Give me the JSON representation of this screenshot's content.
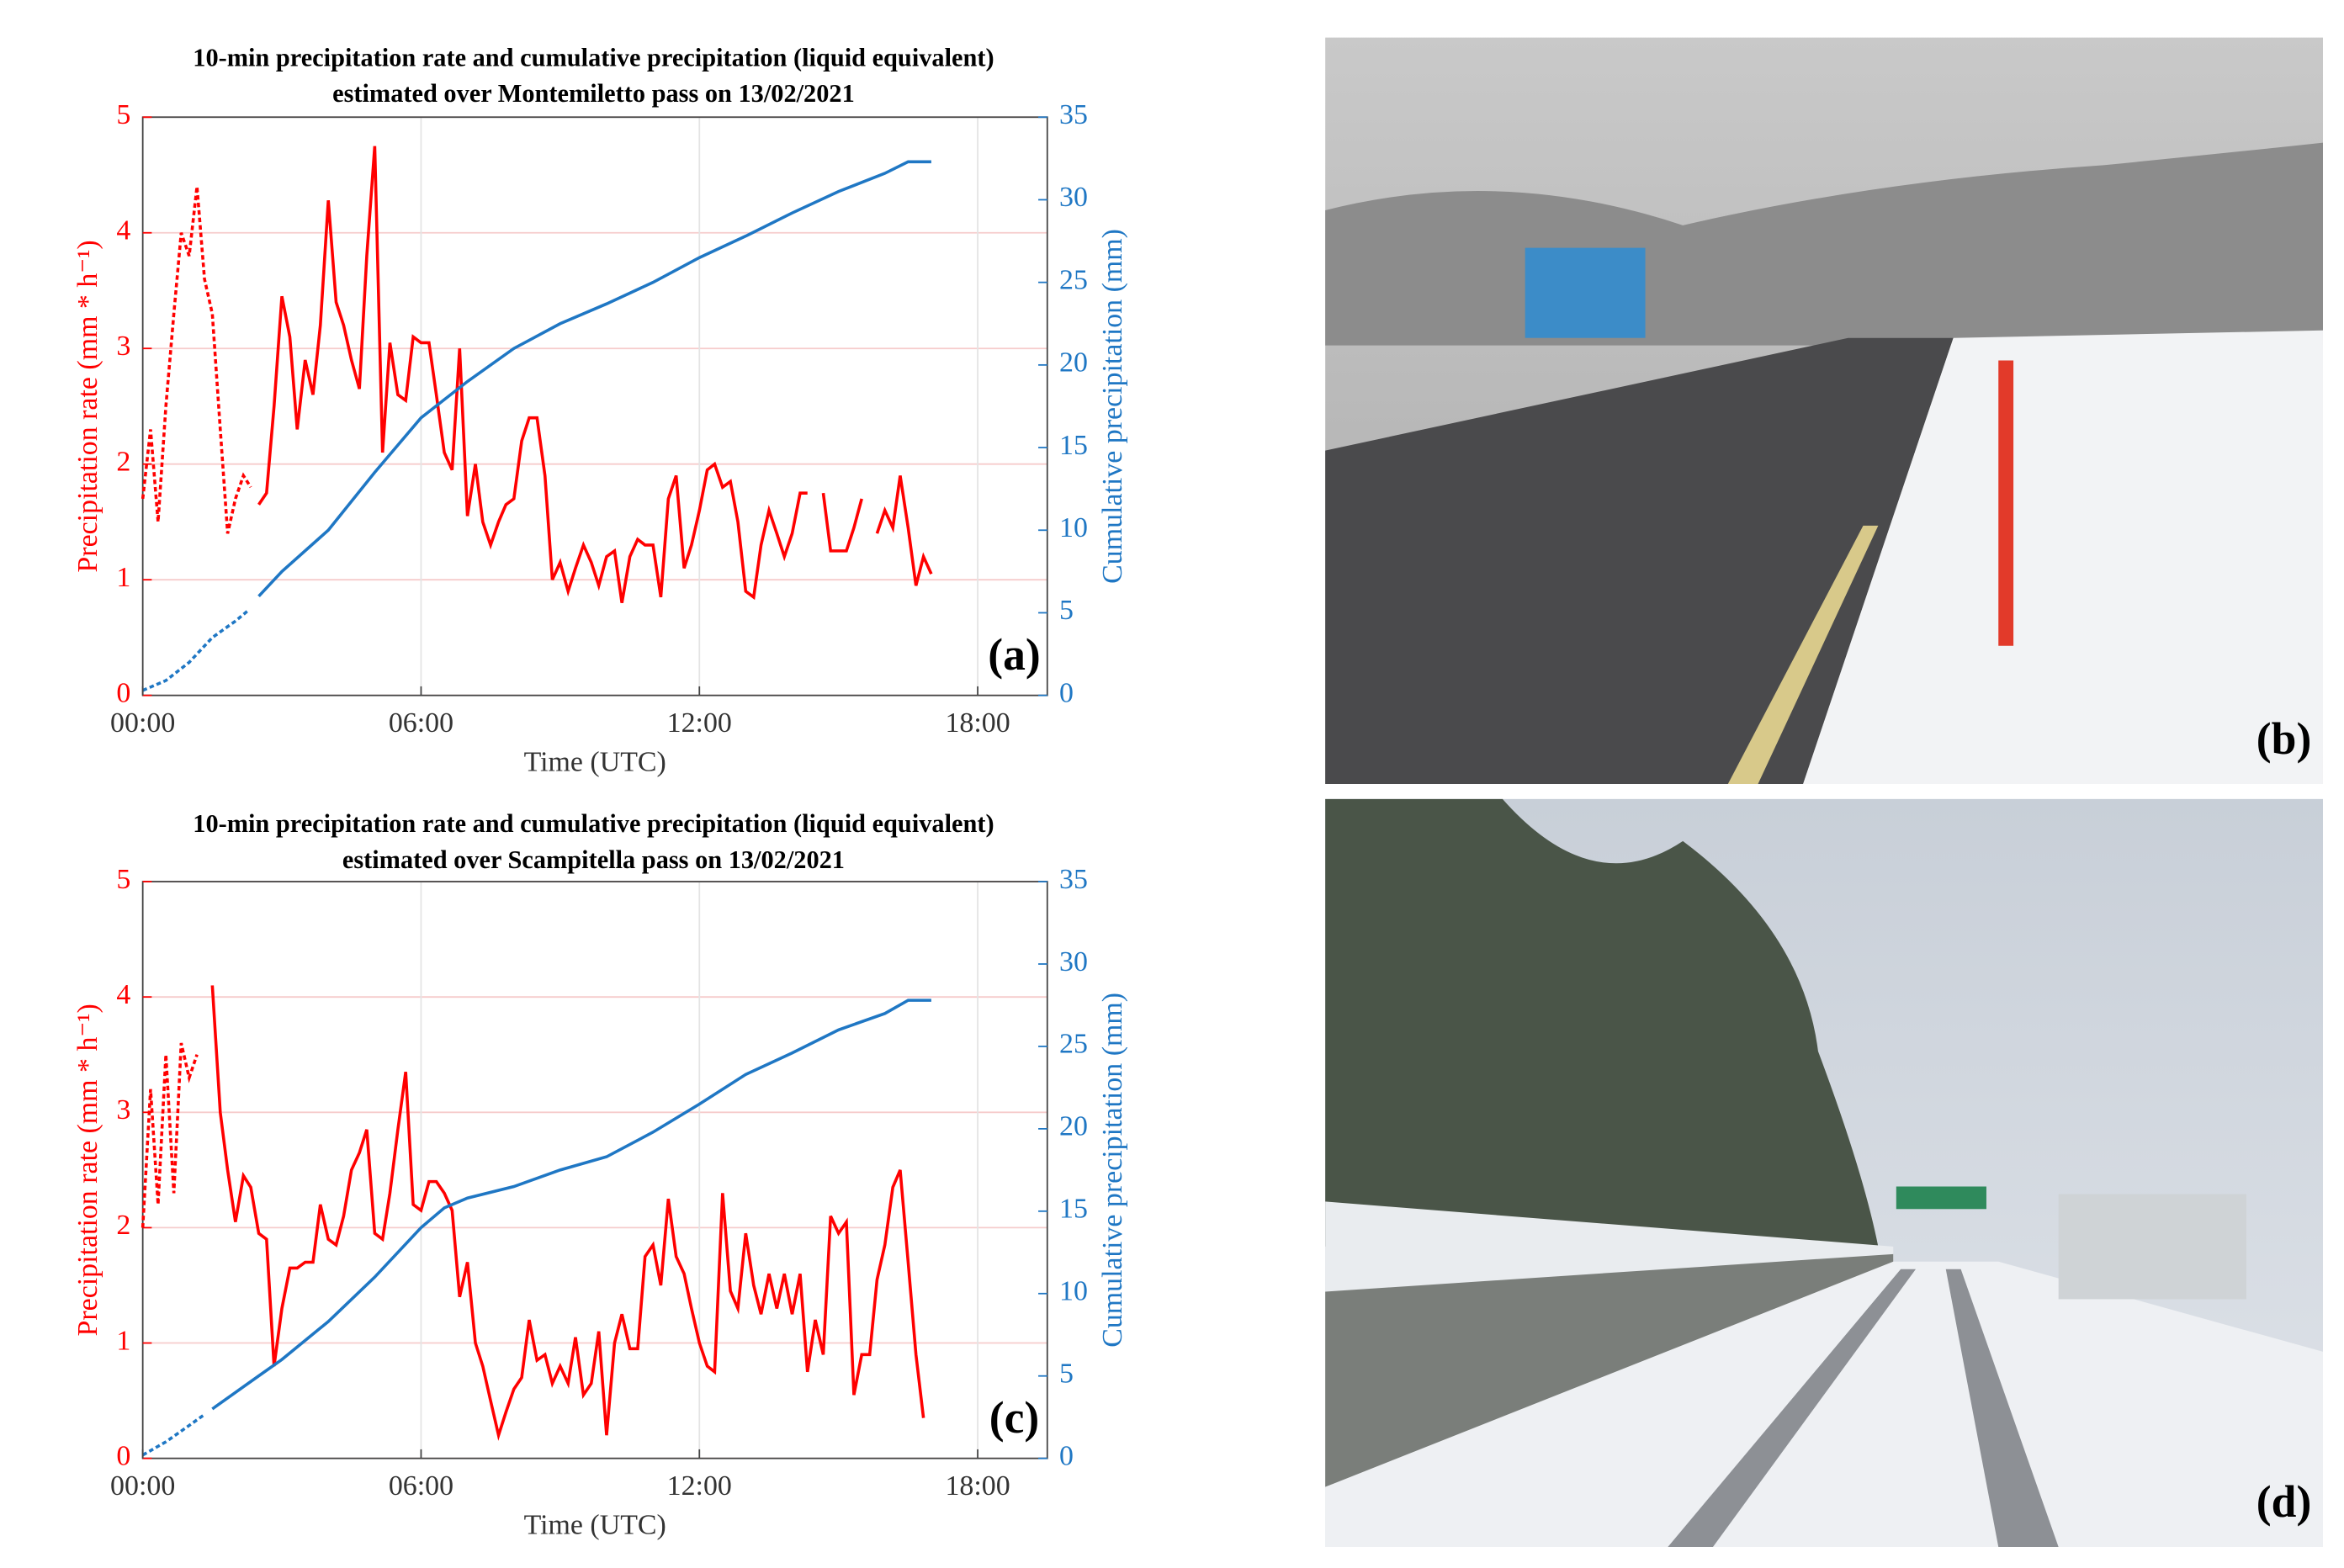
{
  "chart_data": [
    {
      "type": "line",
      "title": "10-min precipitation rate and cumulative precipitation (liquid equivalent)",
      "subtitle": "estimated over Montemiletto pass on 13/02/2021",
      "xlabel": "Time (UTC)",
      "ylabel": "Precipitation rate (mm * h⁻¹)",
      "y2label": "Cumulative precipitation (mm)",
      "annotation": "(a)",
      "grid": true,
      "xlim": [
        0,
        19.5
      ],
      "xticks": [
        {
          "value": 0,
          "label": "00:00"
        },
        {
          "value": 6,
          "label": "06:00"
        },
        {
          "value": 12,
          "label": "12:00"
        },
        {
          "value": 18,
          "label": "18:00"
        }
      ],
      "ylim": [
        0,
        5
      ],
      "yticks": [
        0,
        1,
        2,
        3,
        4,
        5
      ],
      "y2lim": [
        0,
        35
      ],
      "y2ticks": [
        0,
        5,
        10,
        15,
        20,
        25,
        30,
        35
      ],
      "series": [
        {
          "color": "#ff0000",
          "style": "dashed",
          "axis": "y",
          "x": [
            0,
            0.17,
            0.33,
            0.5,
            0.67,
            0.83,
            1.0,
            1.17,
            1.33,
            1.5,
            1.67,
            1.83,
            2.0,
            2.17,
            2.33
          ],
          "values": [
            1.7,
            2.3,
            1.5,
            2.5,
            3.3,
            4.0,
            3.8,
            4.4,
            3.6,
            3.3,
            2.3,
            1.4,
            1.7,
            1.9,
            1.8
          ]
        },
        {
          "color": "#ff0000",
          "style": "solid",
          "axis": "y",
          "x": [
            2.5,
            2.67,
            2.83,
            3.0,
            3.17,
            3.33,
            3.5,
            3.67,
            3.83,
            4.0,
            4.17,
            4.33,
            4.5,
            4.67,
            4.83,
            5.0,
            5.17,
            5.33,
            5.5,
            5.67,
            5.83,
            6.0,
            6.17,
            6.33,
            6.5,
            6.67,
            6.83,
            7.0,
            7.17,
            7.33,
            7.5,
            7.67,
            7.83,
            8.0,
            8.17,
            8.33,
            8.5,
            8.67,
            8.83,
            9.0,
            9.17,
            9.33,
            9.5,
            9.67,
            9.83,
            10.0,
            10.17,
            10.33,
            10.5,
            10.67,
            10.83,
            11.0,
            11.17,
            11.33,
            11.5,
            11.67,
            11.83,
            12.0,
            12.17,
            12.33,
            12.5,
            12.67,
            12.83,
            13.0,
            13.17,
            13.33,
            13.5,
            13.67,
            13.83,
            14.0,
            14.17,
            14.33,
            null,
            14.67,
            14.83,
            15.0,
            15.17,
            15.33,
            15.5,
            null,
            15.83,
            16.0,
            16.17,
            16.33,
            16.5,
            16.67,
            16.83,
            17.0
          ],
          "values": [
            1.65,
            1.75,
            2.5,
            3.45,
            3.1,
            2.3,
            2.9,
            2.6,
            3.2,
            4.28,
            3.4,
            3.2,
            2.9,
            2.65,
            3.8,
            4.75,
            2.1,
            3.05,
            2.6,
            2.55,
            3.1,
            3.05,
            3.05,
            2.6,
            2.1,
            1.95,
            3.0,
            1.55,
            2.0,
            1.5,
            1.3,
            1.5,
            1.65,
            1.7,
            2.2,
            2.4,
            2.4,
            1.9,
            1.0,
            1.15,
            0.9,
            1.1,
            1.3,
            1.15,
            0.95,
            1.2,
            1.25,
            0.8,
            1.2,
            1.35,
            1.3,
            1.3,
            0.85,
            1.7,
            1.9,
            1.1,
            1.3,
            1.6,
            1.95,
            2.0,
            1.8,
            1.85,
            1.5,
            0.9,
            0.85,
            1.3,
            1.6,
            1.4,
            1.2,
            1.4,
            1.75,
            1.75,
            null,
            1.75,
            1.25,
            1.25,
            1.25,
            1.45,
            1.7,
            null,
            1.4,
            1.6,
            1.45,
            1.9,
            1.45,
            0.95,
            1.2,
            1.05
          ]
        },
        {
          "color": "#1f77c4",
          "style": "dashed",
          "axis": "y2",
          "x": [
            0,
            0.5,
            1,
            1.5,
            2,
            2.3
          ],
          "values": [
            0.3,
            0.9,
            2,
            3.5,
            4.5,
            5.2
          ]
        },
        {
          "color": "#1f77c4",
          "style": "solid",
          "axis": "y2",
          "x": [
            2.5,
            3,
            4,
            5,
            6,
            7,
            8,
            9,
            10,
            11,
            12,
            13,
            14,
            15,
            16,
            16.5,
            17
          ],
          "values": [
            6,
            7.5,
            10,
            13.5,
            16.8,
            19,
            21,
            22.5,
            23.7,
            25,
            26.5,
            27.8,
            29.2,
            30.5,
            31.6,
            32.3,
            32.3
          ]
        }
      ]
    },
    {
      "type": "line",
      "title": "10-min precipitation rate and cumulative precipitation (liquid equivalent)",
      "subtitle": "estimated over Scampitella pass on 13/02/2021",
      "xlabel": "Time (UTC)",
      "ylabel": "Precipitation rate (mm * h⁻¹)",
      "y2label": "Cumulative precipitation (mm)",
      "annotation": "(c)",
      "grid": true,
      "xlim": [
        0,
        19.5
      ],
      "xticks": [
        {
          "value": 0,
          "label": "00:00"
        },
        {
          "value": 6,
          "label": "06:00"
        },
        {
          "value": 12,
          "label": "12:00"
        },
        {
          "value": 18,
          "label": "18:00"
        }
      ],
      "ylim": [
        0,
        5
      ],
      "yticks": [
        0,
        1,
        2,
        3,
        4,
        5
      ],
      "y2lim": [
        0,
        35
      ],
      "y2ticks": [
        0,
        5,
        10,
        15,
        20,
        25,
        30,
        35
      ],
      "series": [
        {
          "color": "#ff0000",
          "style": "dashed",
          "axis": "y",
          "x": [
            0,
            0.17,
            0.33,
            0.5,
            0.67,
            0.83,
            1.0,
            1.17
          ],
          "values": [
            2.0,
            3.2,
            2.2,
            3.5,
            2.3,
            3.6,
            3.3,
            3.5
          ]
        },
        {
          "color": "#ff0000",
          "style": "solid",
          "axis": "y",
          "x": [
            1.5,
            1.67,
            1.83,
            2.0,
            2.17,
            2.33,
            2.5,
            2.67,
            2.83,
            3.0,
            3.17,
            3.33,
            3.5,
            3.67,
            3.83,
            4.0,
            4.17,
            4.33,
            4.5,
            4.67,
            4.83,
            5.0,
            5.17,
            5.33,
            5.5,
            5.67,
            5.83,
            6.0,
            6.17,
            6.33,
            6.5,
            6.67,
            6.83,
            7.0,
            7.17,
            7.33,
            7.5,
            7.67,
            7.83,
            8.0,
            8.17,
            8.33,
            8.5,
            8.67,
            8.83,
            9.0,
            9.17,
            9.33,
            9.5,
            9.67,
            9.83,
            10.0,
            10.17,
            10.33,
            10.5,
            10.67,
            10.83,
            11.0,
            11.17,
            11.33,
            11.5,
            11.67,
            11.83,
            12.0,
            12.17,
            12.33,
            12.5,
            12.67,
            12.83,
            13.0,
            13.17,
            13.33,
            13.5,
            13.67,
            13.83,
            14.0,
            14.17,
            14.33,
            14.5,
            14.67,
            14.83,
            15.0,
            15.17,
            15.33,
            15.5,
            15.67,
            15.83,
            16.0,
            16.17,
            16.33,
            16.5,
            16.67,
            16.83
          ],
          "values": [
            4.1,
            3.0,
            2.5,
            2.05,
            2.45,
            2.35,
            1.95,
            1.9,
            0.8,
            1.3,
            1.65,
            1.65,
            1.7,
            1.7,
            2.2,
            1.9,
            1.85,
            2.1,
            2.5,
            2.65,
            2.85,
            1.95,
            1.9,
            2.3,
            2.85,
            3.35,
            2.2,
            2.15,
            2.4,
            2.4,
            2.3,
            2.15,
            1.4,
            1.7,
            1.0,
            0.8,
            0.5,
            0.2,
            0.4,
            0.6,
            0.7,
            1.2,
            0.85,
            0.9,
            0.65,
            0.8,
            0.65,
            1.05,
            0.55,
            0.65,
            1.1,
            0.2,
            1.0,
            1.25,
            0.95,
            0.95,
            1.75,
            1.85,
            1.5,
            2.25,
            1.75,
            1.6,
            1.3,
            1.0,
            0.8,
            0.75,
            2.3,
            1.45,
            1.3,
            1.95,
            1.5,
            1.25,
            1.6,
            1.3,
            1.6,
            1.25,
            1.6,
            0.75,
            1.2,
            0.9,
            2.1,
            1.95,
            2.05,
            0.55,
            0.9,
            0.9,
            1.55,
            1.85,
            2.35,
            2.5,
            1.7,
            0.9,
            0.35
          ]
        },
        {
          "color": "#1f77c4",
          "style": "dashed",
          "axis": "y2",
          "x": [
            0,
            0.5,
            1,
            1.3
          ],
          "values": [
            0.2,
            1,
            2,
            2.6
          ]
        },
        {
          "color": "#1f77c4",
          "style": "solid",
          "axis": "y2",
          "x": [
            1.5,
            2,
            2.5,
            3,
            4,
            5,
            6,
            6.5,
            7,
            8,
            9,
            10,
            11,
            12,
            13,
            14,
            15,
            16,
            16.5,
            17
          ],
          "values": [
            3,
            4,
            5,
            6,
            8.3,
            11,
            14,
            15.2,
            15.8,
            16.5,
            17.5,
            18.3,
            19.8,
            21.5,
            23.3,
            24.6,
            26,
            27,
            27.8,
            27.8
          ]
        }
      ]
    }
  ],
  "photos": [
    {
      "label": "(b)"
    },
    {
      "label": "(d)"
    }
  ]
}
